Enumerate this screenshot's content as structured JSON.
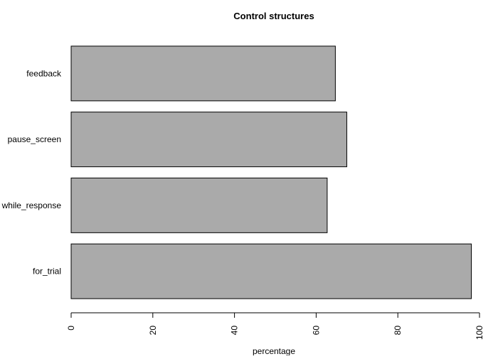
{
  "chart_data": {
    "type": "bar",
    "orientation": "horizontal",
    "title": "Control structures",
    "xlabel": "percentage",
    "ylabel": "",
    "categories": [
      "for_trial",
      "while_response",
      "pause_screen",
      "feedback"
    ],
    "values": [
      98,
      62.7,
      67.5,
      64.7
    ],
    "xlim": [
      0,
      100
    ],
    "xticks": [
      0,
      20,
      40,
      60,
      80,
      100
    ],
    "grid": false,
    "legend": "none",
    "bar_color": "#aaaaaa",
    "bar_border_color": "#000000"
  }
}
